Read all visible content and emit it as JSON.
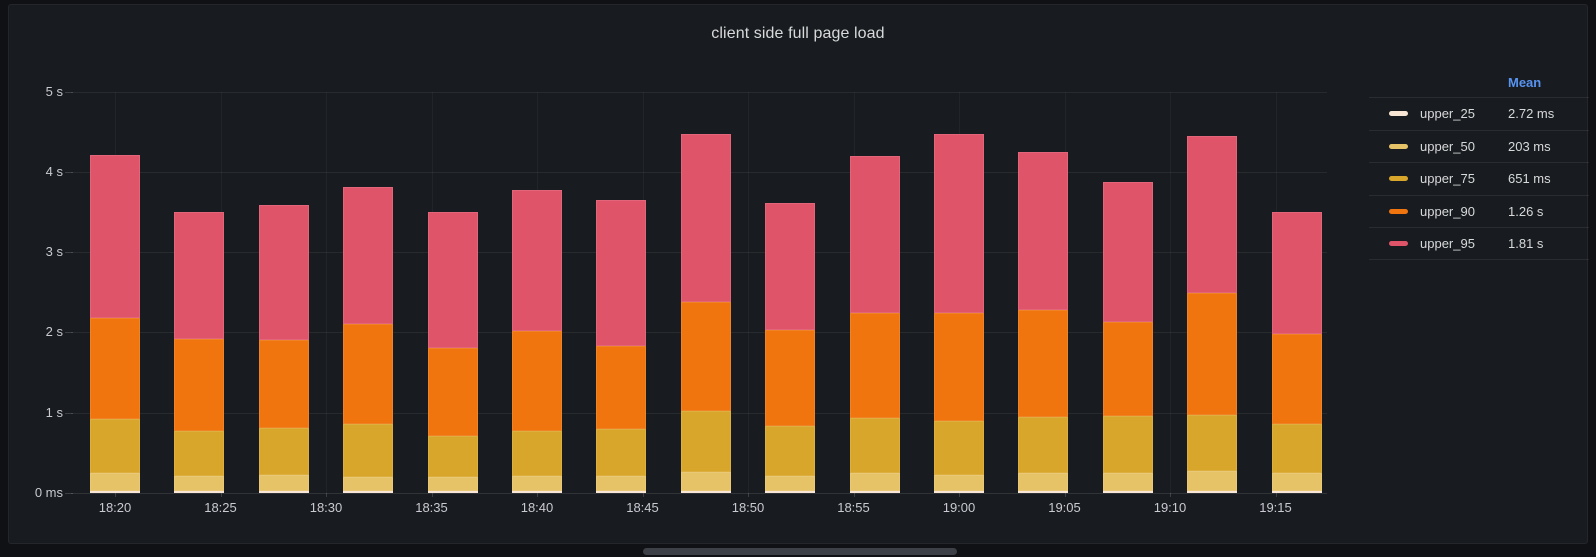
{
  "panel": {
    "title": "client side full page load"
  },
  "legend": {
    "header": "Mean",
    "items": [
      {
        "name": "upper_25",
        "mean": "2.72 ms",
        "color": "#F8E5D4"
      },
      {
        "name": "upper_50",
        "mean": "203 ms",
        "color": "#E7C368"
      },
      {
        "name": "upper_75",
        "mean": "651 ms",
        "color": "#D8A62A"
      },
      {
        "name": "upper_90",
        "mean": "1.26 s",
        "color": "#F0750F"
      },
      {
        "name": "upper_95",
        "mean": "1.81 s",
        "color": "#E0546A"
      }
    ],
    "header_color": "#5794F2"
  },
  "chart_data": {
    "type": "bar",
    "stacked": true,
    "title": "client side full page load",
    "unit": "seconds",
    "ylim": [
      0,
      5
    ],
    "y_tick_labels": [
      "5 s",
      "4 s",
      "3 s",
      "2 s",
      "1 s",
      "0 ms"
    ],
    "x_tick_labels": [
      "18:20",
      "18:25",
      "18:30",
      "18:35",
      "18:40",
      "18:45",
      "18:50",
      "18:55",
      "19:00",
      "19:05",
      "19:10",
      "19:15"
    ],
    "x": [
      "18:20",
      "18:24",
      "18:28",
      "18:32",
      "18:36",
      "18:40",
      "18:44",
      "18:48",
      "18:52",
      "18:56",
      "19:00",
      "19:04",
      "19:08",
      "19:12",
      "19:16"
    ],
    "series": [
      {
        "name": "upper_25",
        "color": "#F8E5D4",
        "values": [
          0.003,
          0.003,
          0.003,
          0.003,
          0.003,
          0.003,
          0.003,
          0.003,
          0.003,
          0.003,
          0.003,
          0.003,
          0.003,
          0.003,
          0.003
        ]
      },
      {
        "name": "upper_50",
        "color": "#E7C368",
        "values": [
          0.22,
          0.19,
          0.2,
          0.18,
          0.17,
          0.19,
          0.19,
          0.24,
          0.19,
          0.22,
          0.2,
          0.23,
          0.23,
          0.25,
          0.22
        ]
      },
      {
        "name": "upper_75",
        "color": "#D8A62A",
        "values": [
          0.68,
          0.56,
          0.58,
          0.65,
          0.51,
          0.56,
          0.58,
          0.76,
          0.62,
          0.69,
          0.67,
          0.69,
          0.7,
          0.7,
          0.61
        ]
      },
      {
        "name": "upper_90",
        "color": "#F0750F",
        "values": [
          1.25,
          1.14,
          1.1,
          1.25,
          1.1,
          1.24,
          1.04,
          1.36,
          1.19,
          1.31,
          1.35,
          1.33,
          1.18,
          1.52,
          1.12
        ]
      },
      {
        "name": "upper_95",
        "color": "#E0546A",
        "values": [
          2.04,
          1.59,
          1.68,
          1.71,
          1.69,
          1.76,
          1.82,
          2.09,
          1.59,
          1.95,
          2.23,
          1.97,
          1.74,
          1.95,
          1.53
        ]
      }
    ],
    "legend_position": "right",
    "grid": true
  }
}
